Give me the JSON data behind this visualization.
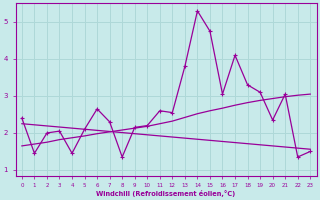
{
  "xlabel": "Windchill (Refroidissement éolien,°C)",
  "background_color": "#c8eaea",
  "grid_color": "#aed8d8",
  "line_color": "#990099",
  "ylim": [
    0.85,
    5.5
  ],
  "xlim": [
    -0.5,
    23.5
  ],
  "xticks": [
    0,
    1,
    2,
    3,
    4,
    5,
    6,
    7,
    8,
    9,
    10,
    11,
    12,
    13,
    14,
    15,
    16,
    17,
    18,
    19,
    20,
    21,
    22,
    23
  ],
  "yticks": [
    1,
    2,
    3,
    4,
    5
  ],
  "jagged": [
    2.4,
    1.45,
    2.0,
    2.05,
    1.45,
    2.1,
    2.65,
    2.3,
    1.35,
    2.15,
    2.2,
    2.6,
    2.55,
    3.8,
    5.3,
    4.75,
    3.05,
    4.1,
    3.3,
    3.1,
    2.35,
    3.05,
    1.35,
    1.5
  ],
  "trend_up": [
    1.65,
    1.7,
    1.75,
    1.82,
    1.87,
    1.92,
    1.98,
    2.03,
    2.08,
    2.13,
    2.18,
    2.25,
    2.32,
    2.42,
    2.52,
    2.6,
    2.67,
    2.75,
    2.82,
    2.88,
    2.93,
    2.98,
    3.02,
    3.05
  ],
  "trend_down": [
    2.25,
    2.22,
    2.19,
    2.16,
    2.13,
    2.1,
    2.07,
    2.04,
    2.01,
    1.98,
    1.95,
    1.92,
    1.89,
    1.86,
    1.83,
    1.8,
    1.77,
    1.74,
    1.71,
    1.68,
    1.65,
    1.62,
    1.59,
    1.56
  ]
}
